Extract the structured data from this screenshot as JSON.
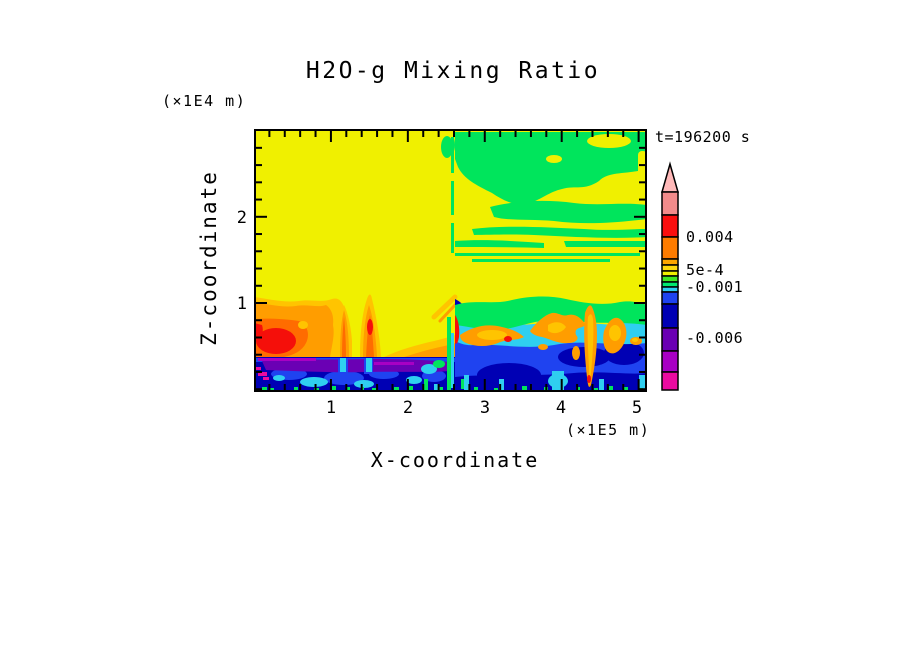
{
  "chart": {
    "title": "H2O-g Mixing Ratio",
    "time_annotation": "t=196200 s",
    "x_axis": {
      "label": "X-coordinate",
      "unit": "(×1E5 m)",
      "ticks": [
        "1",
        "2",
        "3",
        "4",
        "5"
      ]
    },
    "y_axis": {
      "label": "Z-coordinate",
      "unit": "(×1E4 m)",
      "ticks": [
        "2",
        "1"
      ]
    },
    "colorbar": {
      "labels": [
        "0.004",
        "5e-4",
        "-0.001",
        "-0.006"
      ],
      "segments": [
        "#FFB9B9",
        "#F28B8B",
        "#FA0F0F",
        "#FF7C00",
        "#FFA600",
        "#FFD90D",
        "#F0F000",
        "#3FE823",
        "#00E86E",
        "#2FCFF0",
        "#1F43F0",
        "#0000B4",
        "#6A00B4",
        "#A800C4",
        "#EB0AA0"
      ]
    },
    "palette": {
      "background": "#FFFFFF",
      "yellow": "#F0F000",
      "green": "#00E55C",
      "cyan": "#2FCFF0",
      "blue": "#1F43F0",
      "navy": "#0000B4",
      "purple": "#6A00B4",
      "violet": "#A800C4",
      "magenta": "#EB0AA0",
      "orange": "#FF9D00",
      "orangered": "#FF6C00",
      "red": "#F50F0A",
      "amber": "#FFC400",
      "axis": "#000000"
    }
  },
  "chart_data": {
    "type": "heatmap",
    "title": "H2O-g Mixing Ratio",
    "xlabel": "X-coordinate",
    "xunit": "×1E5 m",
    "ylabel": "Z-coordinate",
    "yunit": "×1E4 m",
    "x_ticks": [
      1,
      2,
      3,
      4,
      5
    ],
    "y_ticks": [
      1,
      2
    ],
    "x_range": [
      0,
      5.1
    ],
    "y_range": [
      0,
      3.05
    ],
    "time_annotation": "t=196200 s",
    "colorbar": {
      "orientation": "vertical",
      "labeled_levels": [
        {
          "label": "0.004",
          "value": 0.004
        },
        {
          "label": "5e-4",
          "value": 0.0005
        },
        {
          "label": "-0.001",
          "value": -0.001
        },
        {
          "label": "-0.006",
          "value": -0.006
        }
      ],
      "colors_top_to_bottom": [
        "#FFB9B9",
        "#F28B8B",
        "#FA0F0F",
        "#FF7C00",
        "#FFA600",
        "#FFD90D",
        "#F0F000",
        "#3FE823",
        "#00E86E",
        "#2FCFF0",
        "#1F43F0",
        "#0000B4",
        "#6A00B4",
        "#A800C4",
        "#EB0AA0"
      ],
      "grid": false,
      "legend_position": "right"
    },
    "regions": [
      {
        "x": "0-2.6",
        "z": "1.05-3.05",
        "value": "uniform field near 5e-4 (yellow)"
      },
      {
        "x": "2.6-5.1",
        "z": "2.1-3.05",
        "value": "patchy blobs and horizontal streaks near -0.001 (green) over yellow"
      },
      {
        "x": "2.6-5.1",
        "z": "1.0-2.1",
        "value": "mostly yellow with thin green streaks"
      },
      {
        "x": "0-2.6",
        "z": "0.4-1.05",
        "value": "enhanced mixing ratio >0.004 (orange) with red maxima near x=0.3 and rising plumes near x=1.15 and x=1.5"
      },
      {
        "x": "0-2.6",
        "z": "0-0.4",
        "value": "strong negative layer: navy/blue with purple band (≈-0.006), magenta specks at left, cyan patches, green speckles at surface"
      },
      {
        "x": "2.6-5.1",
        "z": "0-1.0",
        "value": "green/cyan over blue/navy with orange-red updraft plumes near x=2.65, 3.1, 3.9, 4.35, 4.7"
      }
    ]
  }
}
